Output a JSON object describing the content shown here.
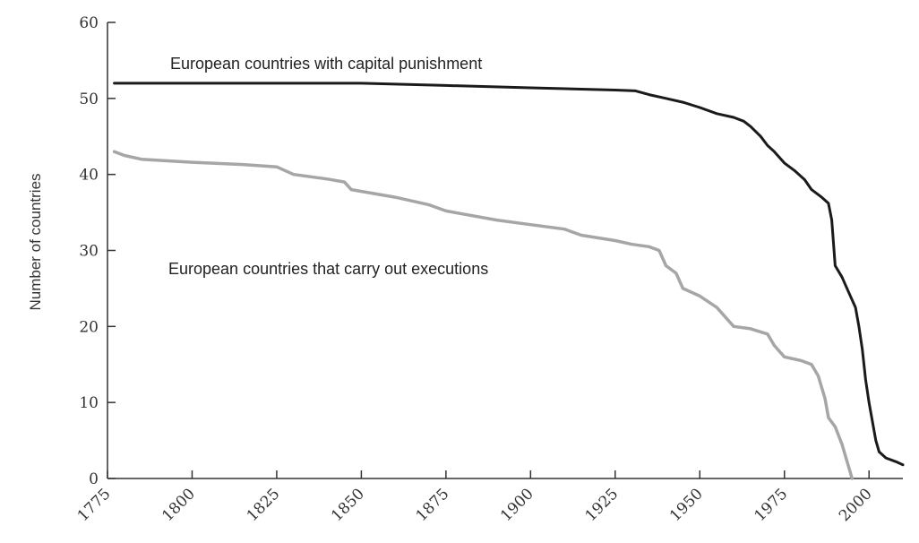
{
  "chart_data": {
    "type": "line",
    "title": "",
    "xlabel": "",
    "ylabel": "Number of countries",
    "xlim": [
      1775,
      2010
    ],
    "ylim": [
      0,
      60
    ],
    "grid": false,
    "legend": "none",
    "x_ticks": [
      "1775",
      "1800",
      "1825",
      "1850",
      "1875",
      "1900",
      "1925",
      "1950",
      "1975",
      "2000"
    ],
    "y_ticks": [
      "0",
      "10",
      "20",
      "30",
      "40",
      "50",
      "60"
    ],
    "series": [
      {
        "name": "European countries with capital punishment",
        "color": "#1a1a1a",
        "points": [
          [
            1777,
            52
          ],
          [
            1800,
            52
          ],
          [
            1825,
            52
          ],
          [
            1850,
            52
          ],
          [
            1875,
            51.7
          ],
          [
            1900,
            51.4
          ],
          [
            1925,
            51.1
          ],
          [
            1931,
            51
          ],
          [
            1935,
            50.5
          ],
          [
            1940,
            50
          ],
          [
            1945,
            49.5
          ],
          [
            1950,
            48.8
          ],
          [
            1955,
            48
          ],
          [
            1960,
            47.5
          ],
          [
            1963,
            47
          ],
          [
            1965,
            46.3
          ],
          [
            1968,
            45
          ],
          [
            1970,
            43.8
          ],
          [
            1972,
            43
          ],
          [
            1975,
            41.5
          ],
          [
            1978,
            40.5
          ],
          [
            1981,
            39.3
          ],
          [
            1983,
            38
          ],
          [
            1986,
            37
          ],
          [
            1988,
            36.2
          ],
          [
            1989,
            34
          ],
          [
            1990,
            28
          ],
          [
            1992,
            26.5
          ],
          [
            1994,
            24.5
          ],
          [
            1996,
            22.5
          ],
          [
            1997,
            20
          ],
          [
            1998,
            17
          ],
          [
            1999,
            13
          ],
          [
            2000,
            10
          ],
          [
            2001,
            7.5
          ],
          [
            2002,
            5
          ],
          [
            2003,
            3.5
          ],
          [
            2005,
            2.7
          ],
          [
            2008,
            2.2
          ],
          [
            2010,
            1.8
          ]
        ]
      },
      {
        "name": "European countries that carry out executions",
        "color": "#a6a6a6",
        "points": [
          [
            1777,
            43
          ],
          [
            1780,
            42.5
          ],
          [
            1785,
            42
          ],
          [
            1800,
            41.6
          ],
          [
            1815,
            41.3
          ],
          [
            1825,
            41
          ],
          [
            1830,
            40
          ],
          [
            1840,
            39.4
          ],
          [
            1845,
            39
          ],
          [
            1847,
            38
          ],
          [
            1860,
            37
          ],
          [
            1870,
            36
          ],
          [
            1875,
            35.2
          ],
          [
            1880,
            34.8
          ],
          [
            1890,
            34
          ],
          [
            1900,
            33.4
          ],
          [
            1910,
            32.8
          ],
          [
            1915,
            32
          ],
          [
            1925,
            31.3
          ],
          [
            1930,
            30.8
          ],
          [
            1935,
            30.5
          ],
          [
            1938,
            30
          ],
          [
            1940,
            28
          ],
          [
            1943,
            27
          ],
          [
            1945,
            25
          ],
          [
            1950,
            24
          ],
          [
            1955,
            22.5
          ],
          [
            1960,
            20
          ],
          [
            1965,
            19.7
          ],
          [
            1970,
            19
          ],
          [
            1972,
            17.5
          ],
          [
            1975,
            16
          ],
          [
            1980,
            15.5
          ],
          [
            1983,
            15
          ],
          [
            1985,
            13.5
          ],
          [
            1987,
            10.5
          ],
          [
            1988,
            8
          ],
          [
            1990,
            6.8
          ],
          [
            1992,
            4.5
          ],
          [
            1993,
            3
          ],
          [
            1995,
            0
          ]
        ]
      }
    ]
  }
}
